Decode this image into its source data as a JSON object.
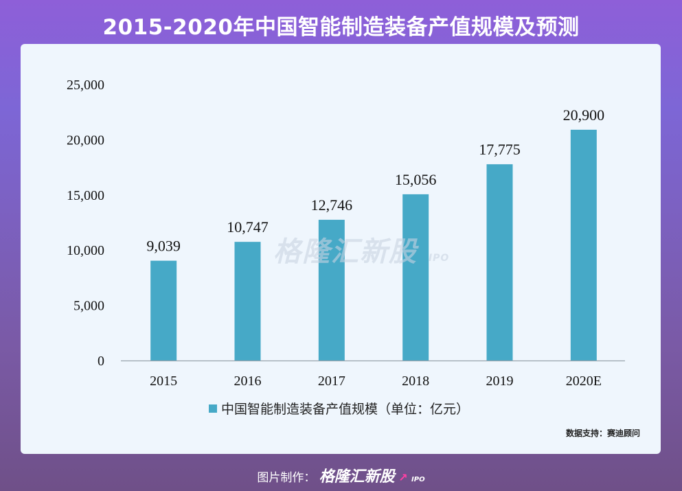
{
  "header": {
    "title": "2015-2020年中国智能制造装备产值规模及预测"
  },
  "chart_data": {
    "type": "bar",
    "categories": [
      "2015",
      "2016",
      "2017",
      "2018",
      "2019",
      "2020E"
    ],
    "values": [
      9039,
      10747,
      12746,
      15056,
      17775,
      20900
    ],
    "value_labels": [
      "9,039",
      "10,747",
      "12,746",
      "15,056",
      "17,775",
      "20,900"
    ],
    "yticks": [
      0,
      5000,
      10000,
      15000,
      20000,
      25000
    ],
    "ytick_labels": [
      "0",
      "5,000",
      "10,000",
      "15,000",
      "20,000",
      "25,000"
    ],
    "ylim": [
      0,
      25000
    ],
    "series_name": "中国智能制造装备产值规模（单位：亿元）",
    "bar_color": "#46a9c7",
    "legend_position": "bottom-center",
    "grid": false
  },
  "source": "数据支持：赛迪顾问",
  "watermark": {
    "text": "格隆汇新股",
    "suffix": "IPO"
  },
  "footer": {
    "prefix": "图片制作：",
    "brand": "格隆汇新股",
    "brand_suffix": "IPO",
    "arrow": "↗"
  }
}
